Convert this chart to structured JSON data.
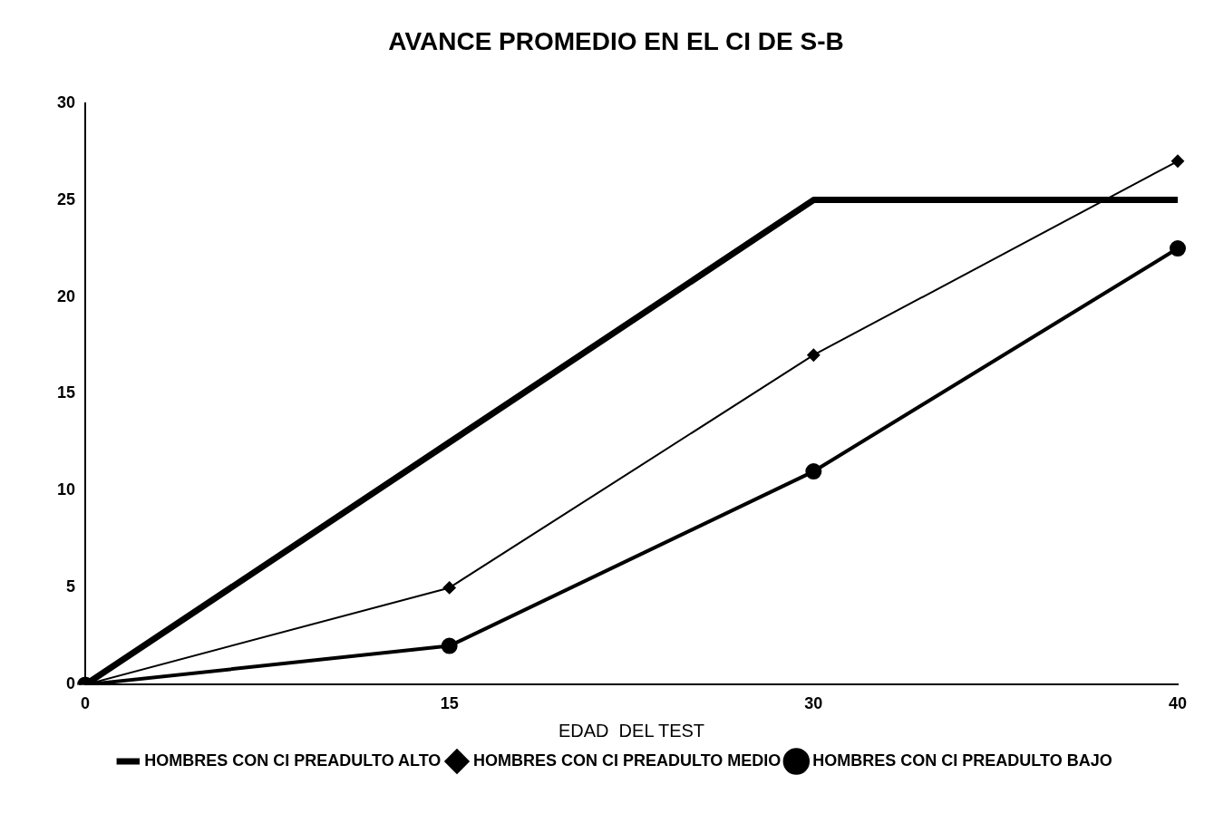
{
  "chart_data": {
    "type": "line",
    "title": "AVANCE PROMEDIO EN EL CI DE S-B",
    "xlabel": "EDAD  DEL TEST",
    "categories": [
      "0",
      "15",
      "30",
      "40"
    ],
    "series": [
      {
        "name": "HOMBRES CON CI PREADULTO ALTO",
        "color": "#000000",
        "marker": "none",
        "values": [
          0,
          12.5,
          25,
          25
        ]
      },
      {
        "name": "HOMBRES CON CI PREADULTO MEDIO",
        "color": "#000000",
        "marker": "diamond",
        "values": [
          0,
          5,
          17,
          27
        ]
      },
      {
        "name": "HOMBRES CON CI PREADULTO BAJO",
        "color": "#000000",
        "marker": "circle",
        "values": [
          0,
          2,
          11,
          22.5
        ]
      }
    ],
    "ylim": [
      0,
      30
    ],
    "yticks": [
      0,
      5,
      10,
      15,
      20,
      25,
      30
    ],
    "grid": false,
    "legend": "bottom",
    "line_style": "solid"
  }
}
